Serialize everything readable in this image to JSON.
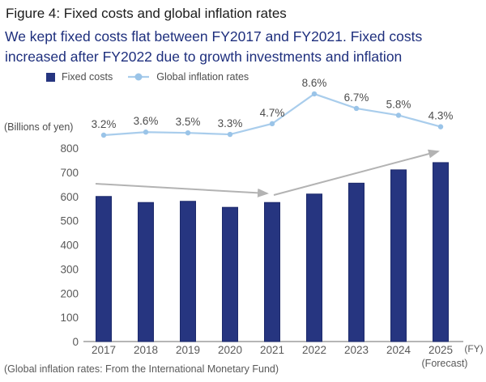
{
  "figure": {
    "title": "Figure 4: Fixed costs and global inflation rates",
    "subtitle_line1": "We kept fixed costs flat between FY2017 and FY2021. Fixed costs",
    "subtitle_line2": "increased after FY2022 due to growth investments and inflation",
    "footnote": "(Global inflation rates: From the International Monetary Fund)"
  },
  "legend": {
    "items": [
      {
        "label": "Fixed costs",
        "marker": "square",
        "color": "#263580"
      },
      {
        "label": "Global inflation rates",
        "marker": "line-dot",
        "color": "#a9cdec"
      }
    ]
  },
  "chart_data": {
    "type": "bar",
    "categories": [
      "2017",
      "2018",
      "2019",
      "2020",
      "2021",
      "2022",
      "2023",
      "2024",
      "2025"
    ],
    "x_axis_suffix": "(FY)",
    "forecast_label": "(Forecast)",
    "forecast_category": "2025",
    "ylabel": "(Billions of yen)",
    "y_ticks": [
      0,
      100,
      200,
      300,
      400,
      500,
      600,
      700,
      800
    ],
    "ylim": [
      0,
      800
    ],
    "grid": false,
    "legend_position": "top",
    "series": [
      {
        "name": "Fixed costs",
        "type": "bar",
        "unit": "Billions of yen",
        "color": "#263580",
        "values": [
          600,
          575,
          580,
          555,
          575,
          610,
          655,
          710,
          740
        ]
      },
      {
        "name": "Global inflation rates",
        "type": "line",
        "unit": "%",
        "color": "#a9cdec",
        "dot_color": "#9ac4e8",
        "values": [
          3.2,
          3.6,
          3.5,
          3.3,
          4.7,
          8.6,
          6.7,
          5.8,
          4.3
        ],
        "labels": [
          "3.2%",
          "3.6%",
          "3.5%",
          "3.3%",
          "4.7%",
          "8.6%",
          "6.7%",
          "5.8%",
          "4.3%"
        ]
      }
    ],
    "annotations": [
      {
        "name": "flat-trend-arrow",
        "from_category": "2017",
        "to_category": "2021",
        "color": "#b3b3b3"
      },
      {
        "name": "rising-trend-arrow",
        "from_category": "2021",
        "to_category": "2025",
        "color": "#b3b3b3"
      }
    ]
  },
  "colors": {
    "bar": "#263580",
    "bar_edge": "#1d2a6b",
    "line": "#a9cdec",
    "dot": "#9ac4e8",
    "subtitle": "#1e2f7d",
    "arrow": "#b3b3b3",
    "axis": "#8a8a8a",
    "axis_text": "#595959",
    "label_text": "#4d4d4d",
    "title_text": "#1b1b1b"
  }
}
